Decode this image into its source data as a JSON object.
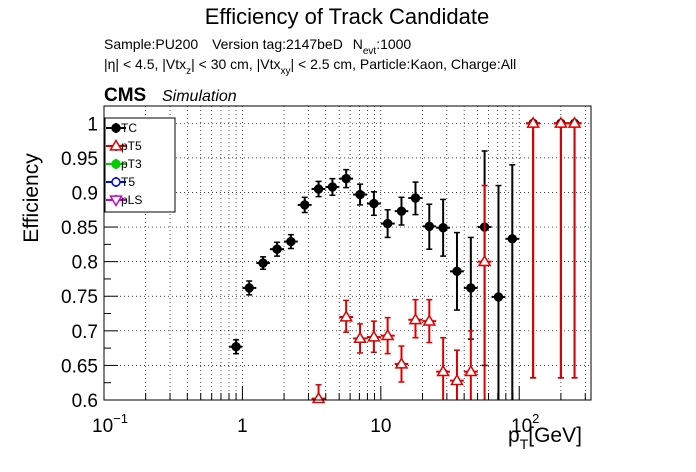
{
  "chart_data": {
    "type": "scatter",
    "title": "Efficiency of Track Candidate",
    "subtitle_line1": {
      "sample": "Sample:PU200",
      "version": "Version tag:2147beD",
      "nevt_main": "N",
      "nevt_sub": "evt",
      "nevt_value": ":1000"
    },
    "subtitle_line2": {
      "p1": "|η| < 4.5, |Vtx",
      "s1": "z",
      "p2": "| < 30 cm, |Vtx",
      "s2": "xy",
      "p3": "| < 2.5 cm, Particle:Kaon, Charge:All"
    },
    "experiment": "CMS",
    "experiment_note": "Simulation",
    "xlabel": {
      "main": "p",
      "sub": "T",
      "rest": "[GeV]"
    },
    "ylabel": "Efficiency",
    "x_scale": "log",
    "xlim": [
      0.1,
      330
    ],
    "ylim": [
      0.6,
      1.025
    ],
    "x_tick_labels": [
      {
        "value": 0.1,
        "base": "10",
        "exp": "−1"
      },
      {
        "value": 1,
        "base": "1",
        "exp": ""
      },
      {
        "value": 10,
        "base": "10",
        "exp": ""
      },
      {
        "value": 100,
        "base": "10",
        "exp": "2"
      }
    ],
    "y_ticks": [
      "0.6",
      "0.65",
      "0.7",
      "0.75",
      "0.8",
      "0.85",
      "0.9",
      "0.95",
      "1"
    ],
    "grid": true,
    "legend_position": "top-left",
    "series": [
      {
        "name": "TC",
        "color": "#000000",
        "marker": "filled-circle",
        "points": [
          {
            "x": 0.9,
            "xlo": 0.8,
            "xhi": 1.0,
            "y": 0.677,
            "ylo": 0.667,
            "yhi": 0.687
          },
          {
            "x": 1.12,
            "xlo": 1.0,
            "xhi": 1.26,
            "y": 0.762,
            "ylo": 0.752,
            "yhi": 0.772
          },
          {
            "x": 1.41,
            "xlo": 1.26,
            "xhi": 1.58,
            "y": 0.798,
            "ylo": 0.789,
            "yhi": 0.807
          },
          {
            "x": 1.78,
            "xlo": 1.58,
            "xhi": 2.0,
            "y": 0.818,
            "ylo": 0.808,
            "yhi": 0.828
          },
          {
            "x": 2.24,
            "xlo": 2.0,
            "xhi": 2.51,
            "y": 0.829,
            "ylo": 0.819,
            "yhi": 0.839
          },
          {
            "x": 2.82,
            "xlo": 2.51,
            "xhi": 3.16,
            "y": 0.882,
            "ylo": 0.871,
            "yhi": 0.893
          },
          {
            "x": 3.55,
            "xlo": 3.16,
            "xhi": 3.98,
            "y": 0.905,
            "ylo": 0.894,
            "yhi": 0.916
          },
          {
            "x": 4.47,
            "xlo": 3.98,
            "xhi": 5.01,
            "y": 0.908,
            "ylo": 0.896,
            "yhi": 0.92
          },
          {
            "x": 5.62,
            "xlo": 5.01,
            "xhi": 6.31,
            "y": 0.92,
            "ylo": 0.907,
            "yhi": 0.933
          },
          {
            "x": 7.08,
            "xlo": 6.31,
            "xhi": 7.94,
            "y": 0.897,
            "ylo": 0.882,
            "yhi": 0.912
          },
          {
            "x": 8.91,
            "xlo": 7.94,
            "xhi": 10.0,
            "y": 0.884,
            "ylo": 0.867,
            "yhi": 0.901
          },
          {
            "x": 11.2,
            "xlo": 10.0,
            "xhi": 12.6,
            "y": 0.855,
            "ylo": 0.835,
            "yhi": 0.875
          },
          {
            "x": 14.1,
            "xlo": 12.6,
            "xhi": 15.8,
            "y": 0.873,
            "ylo": 0.853,
            "yhi": 0.893
          },
          {
            "x": 17.8,
            "xlo": 15.8,
            "xhi": 20.0,
            "y": 0.892,
            "ylo": 0.868,
            "yhi": 0.915
          },
          {
            "x": 22.4,
            "xlo": 20.0,
            "xhi": 25.1,
            "y": 0.851,
            "ylo": 0.818,
            "yhi": 0.883
          },
          {
            "x": 28.2,
            "xlo": 25.1,
            "xhi": 31.6,
            "y": 0.849,
            "ylo": 0.808,
            "yhi": 0.89
          },
          {
            "x": 35.5,
            "xlo": 31.6,
            "xhi": 39.8,
            "y": 0.786,
            "ylo": 0.73,
            "yhi": 0.842
          },
          {
            "x": 44.7,
            "xlo": 39.8,
            "xhi": 50.1,
            "y": 0.762,
            "ylo": 0.688,
            "yhi": 0.835
          },
          {
            "x": 56.2,
            "xlo": 50.1,
            "xhi": 63.1,
            "y": 0.85,
            "ylo": 0.65,
            "yhi": 0.96
          },
          {
            "x": 70.8,
            "xlo": 63.1,
            "xhi": 79.4,
            "y": 0.749,
            "ylo": 0.6,
            "yhi": 0.91
          },
          {
            "x": 89.1,
            "xlo": 79.4,
            "xhi": 100.0,
            "y": 0.833,
            "ylo": 0.6,
            "yhi": 0.94
          },
          {
            "x": 126,
            "xlo": 112,
            "xhi": 141,
            "y": 1.0,
            "ylo": 0.632,
            "yhi": 1.0
          },
          {
            "x": 200,
            "xlo": 178,
            "xhi": 224,
            "y": 1.0,
            "ylo": 0.632,
            "yhi": 1.0
          },
          {
            "x": 251,
            "xlo": 224,
            "xhi": 282,
            "y": 1.0,
            "ylo": 0.632,
            "yhi": 1.0
          }
        ]
      },
      {
        "name": "pT5",
        "color": "#dd0000",
        "marker": "open-triangle-up",
        "points": [
          {
            "x": 3.55,
            "xlo": 3.16,
            "xhi": 3.98,
            "y": 0.602,
            "ylo": 0.593,
            "yhi": 0.622
          },
          {
            "x": 5.62,
            "xlo": 5.01,
            "xhi": 6.31,
            "y": 0.72,
            "ylo": 0.698,
            "yhi": 0.744
          },
          {
            "x": 7.08,
            "xlo": 6.31,
            "xhi": 7.94,
            "y": 0.689,
            "ylo": 0.668,
            "yhi": 0.71
          },
          {
            "x": 8.91,
            "xlo": 7.94,
            "xhi": 10.0,
            "y": 0.691,
            "ylo": 0.669,
            "yhi": 0.714
          },
          {
            "x": 11.2,
            "xlo": 10.0,
            "xhi": 12.6,
            "y": 0.693,
            "ylo": 0.667,
            "yhi": 0.719
          },
          {
            "x": 14.1,
            "xlo": 12.6,
            "xhi": 15.8,
            "y": 0.652,
            "ylo": 0.626,
            "yhi": 0.678
          },
          {
            "x": 17.8,
            "xlo": 15.8,
            "xhi": 20.0,
            "y": 0.716,
            "ylo": 0.69,
            "yhi": 0.745
          },
          {
            "x": 22.4,
            "xlo": 20.0,
            "xhi": 25.1,
            "y": 0.714,
            "ylo": 0.683,
            "yhi": 0.745
          },
          {
            "x": 28.2,
            "xlo": 25.1,
            "xhi": 31.6,
            "y": 0.641,
            "ylo": 0.6,
            "yhi": 0.69
          },
          {
            "x": 35.5,
            "xlo": 31.6,
            "xhi": 39.8,
            "y": 0.628,
            "ylo": 0.6,
            "yhi": 0.672
          },
          {
            "x": 44.7,
            "xlo": 39.8,
            "xhi": 50.1,
            "y": 0.641,
            "ylo": 0.6,
            "yhi": 0.7
          },
          {
            "x": 56.2,
            "xlo": 50.1,
            "xhi": 63.1,
            "y": 0.8,
            "ylo": 0.6,
            "yhi": 0.91
          },
          {
            "x": 126,
            "xlo": 112,
            "xhi": 141,
            "y": 1.0,
            "ylo": 0.632,
            "yhi": 1.0
          },
          {
            "x": 200,
            "xlo": 178,
            "xhi": 224,
            "y": 1.0,
            "ylo": 0.632,
            "yhi": 1.0
          },
          {
            "x": 251,
            "xlo": 224,
            "xhi": 282,
            "y": 1.0,
            "ylo": 0.632,
            "yhi": 1.0
          }
        ]
      },
      {
        "name": "pT3",
        "color": "#00cc00",
        "marker": "filled-circle",
        "points": []
      },
      {
        "name": "T5",
        "color": "#0000ff",
        "marker": "open-circle",
        "points": []
      },
      {
        "name": "pLS",
        "color": "#cc00cc",
        "marker": "open-triangle-down",
        "points": []
      }
    ]
  }
}
